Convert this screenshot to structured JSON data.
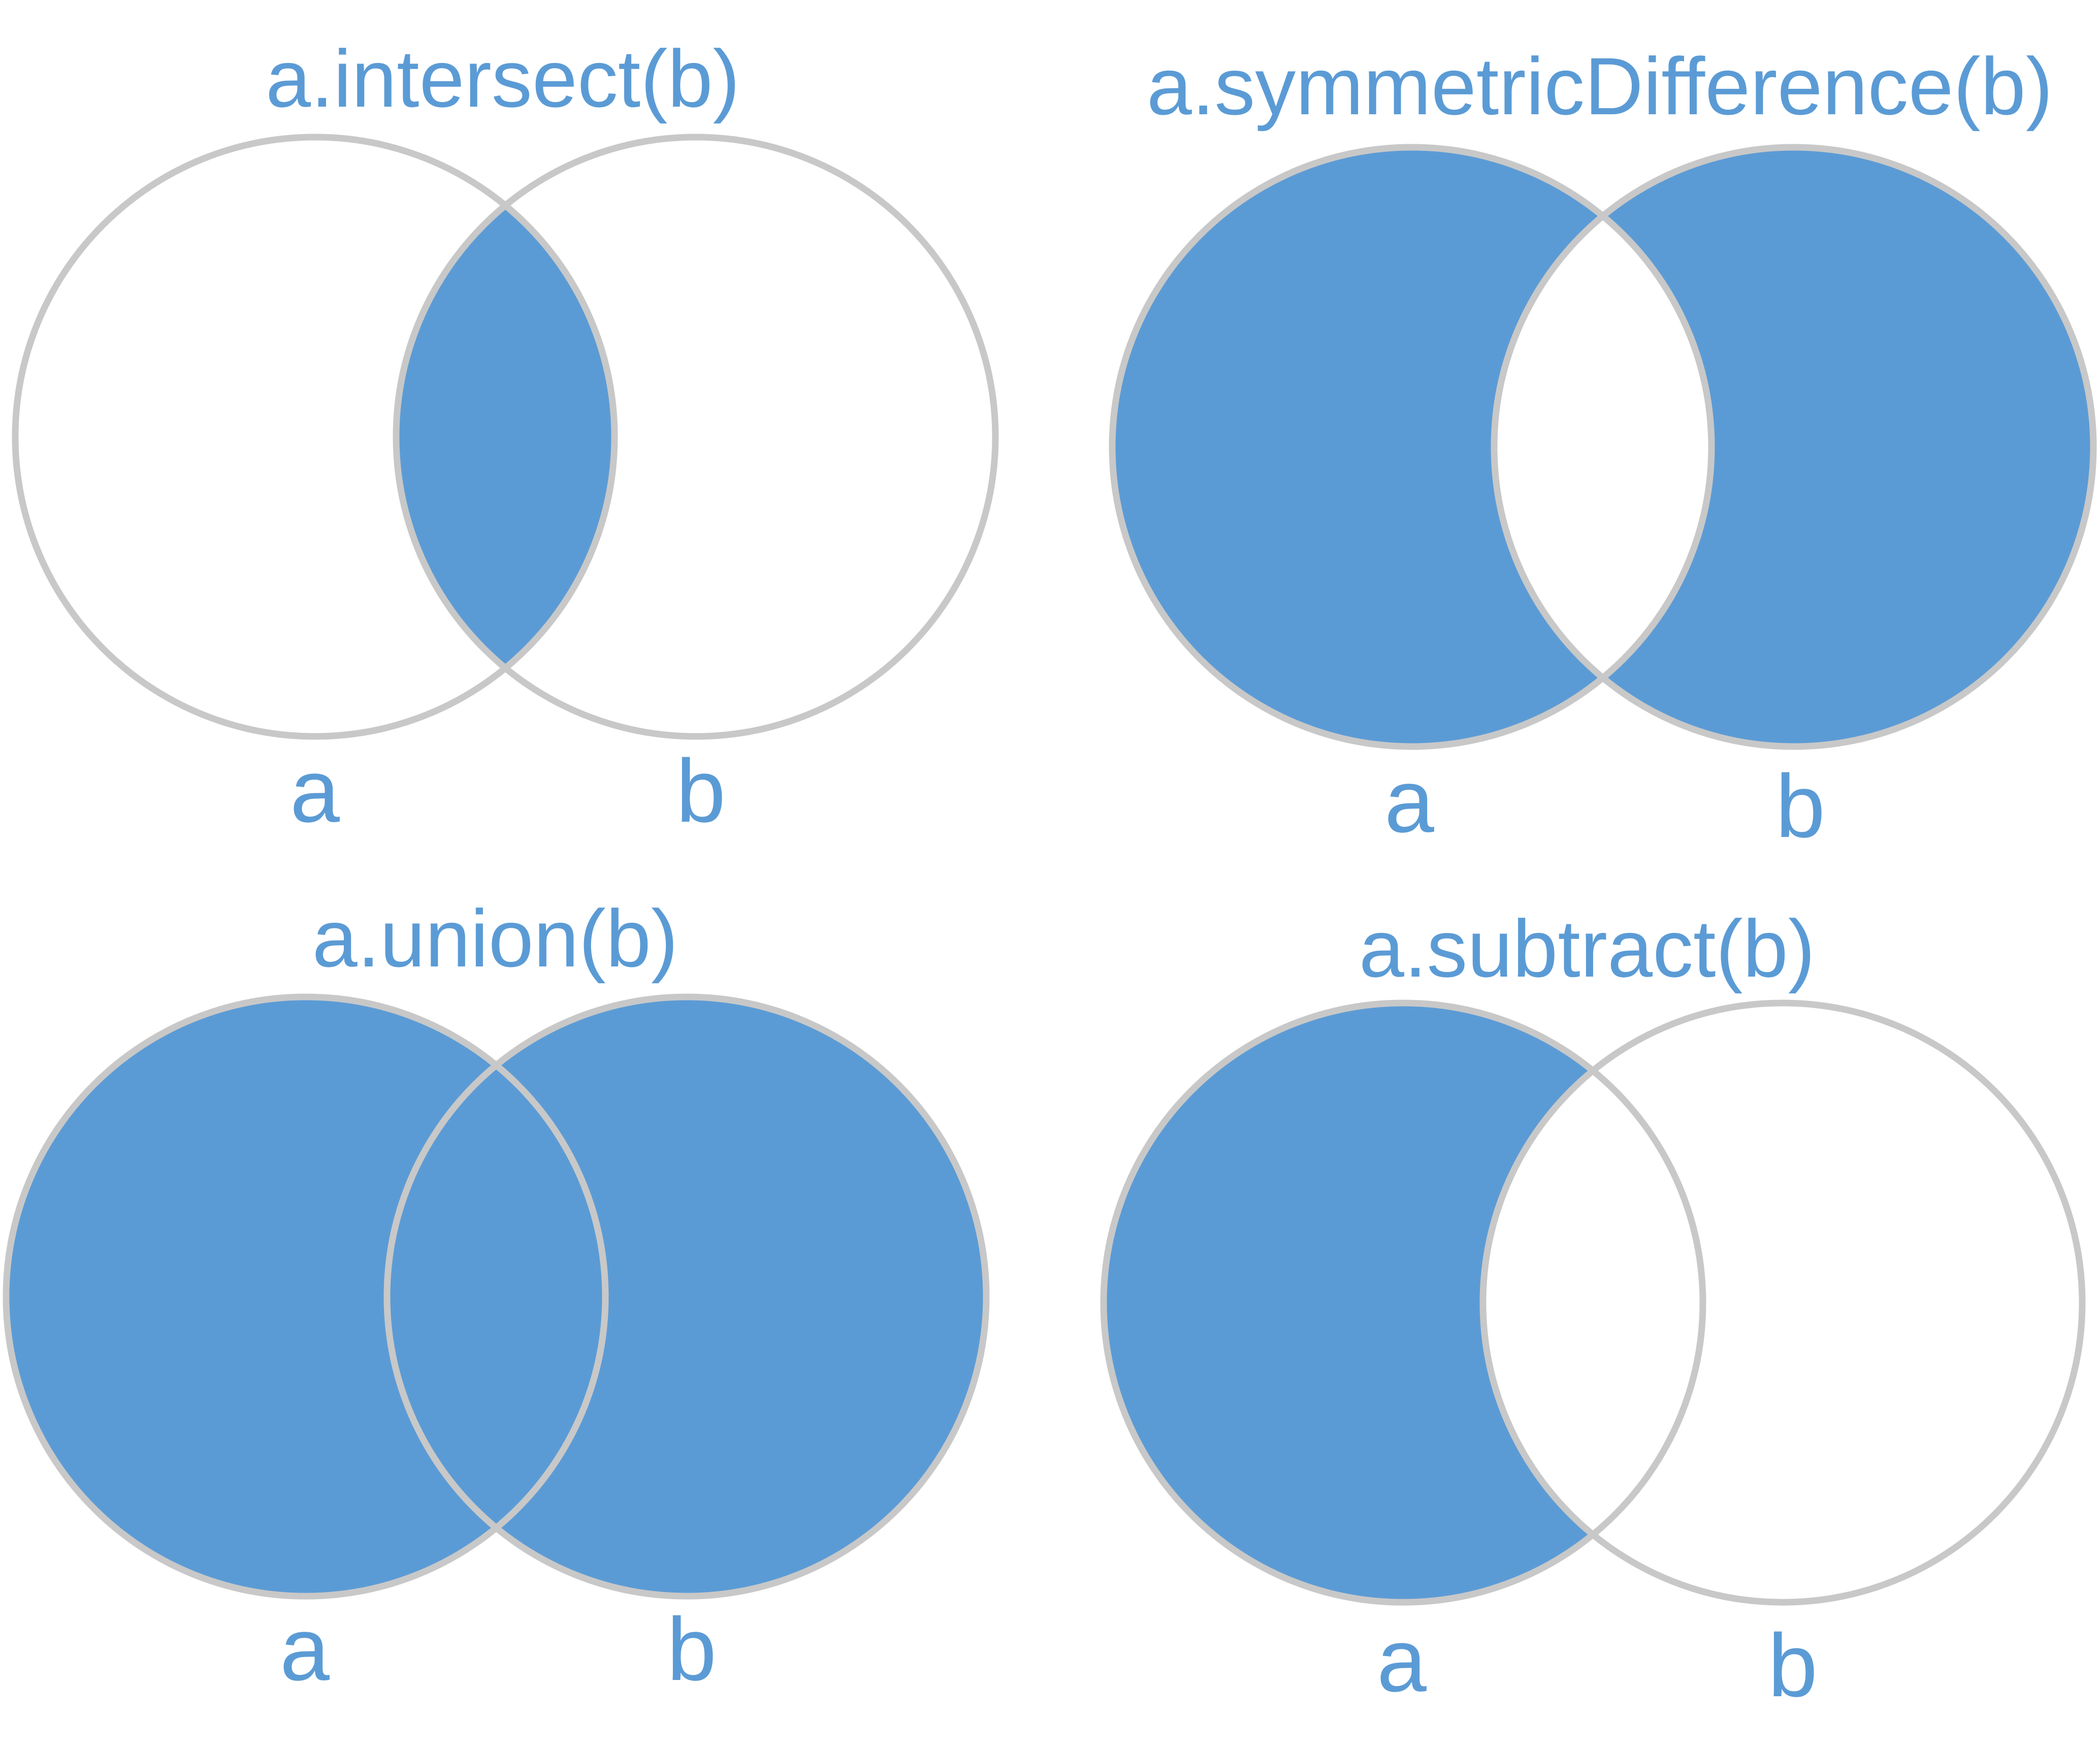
{
  "colors": {
    "fill": "#5b9bd5",
    "outline": "#c8c8c8",
    "text": "#5b9bd5",
    "background": "#ffffff"
  },
  "diagrams": {
    "intersect": {
      "title": "a.intersect(b)",
      "set_a": "a",
      "set_b": "b"
    },
    "symmetric_difference": {
      "title": "a.symmetricDifference(b)",
      "set_a": "a",
      "set_b": "b"
    },
    "union": {
      "title": "a.union(b)",
      "set_a": "a",
      "set_b": "b"
    },
    "subtract": {
      "title": "a.subtract(b)",
      "set_a": "a",
      "set_b": "b"
    }
  }
}
